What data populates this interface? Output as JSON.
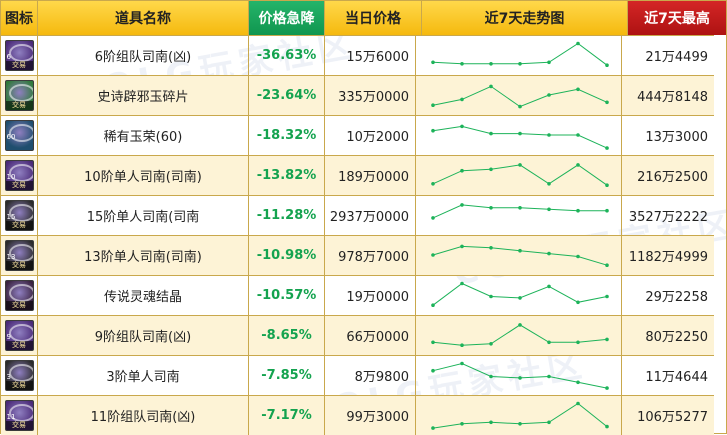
{
  "headers": {
    "icon": "图标",
    "name": "道具名称",
    "drop": "价格急降",
    "price": "当日价格",
    "trend": "近7天走势图",
    "max": "近7天最高"
  },
  "watermark": "COLG玩家社区",
  "colors": {
    "header_bg": "#f5b90e",
    "drop_header_bg": "#10964f",
    "max_header_bg": "#ae1212",
    "drop_text": "#14a34f",
    "trend_line": "#1db35a",
    "row_alt_bg": "#fdf3d6",
    "border": "#c9a84c"
  },
  "rows": [
    {
      "name": "6阶组队司南(凶)",
      "drop": "-36.63%",
      "price": "15万6000",
      "max": "21万4499",
      "icon": {
        "name": "compass-icon",
        "bg": "#4a2a78",
        "level": "6",
        "tag": "交易"
      },
      "trend": [
        0.3,
        0.25,
        0.25,
        0.25,
        0.3,
        0.95,
        0.2
      ]
    },
    {
      "name": "史诗辟邪玉碎片",
      "drop": "-23.64%",
      "price": "335万0000",
      "max": "444万8148",
      "icon": {
        "name": "jade-shard-icon",
        "bg": "#2f7a3a",
        "level": "",
        "tag": "交易"
      },
      "trend": [
        0.2,
        0.4,
        0.85,
        0.15,
        0.55,
        0.75,
        0.3
      ]
    },
    {
      "name": "稀有玉荣(60)",
      "drop": "-18.32%",
      "price": "10万2000",
      "max": "13万3000",
      "icon": {
        "name": "jade-orb-icon",
        "bg": "#1f4e6e",
        "level": "60",
        "tag": ""
      },
      "trend": [
        0.7,
        0.85,
        0.6,
        0.6,
        0.55,
        0.55,
        0.1
      ]
    },
    {
      "name": "10阶单人司南(司南)",
      "drop": "-13.82%",
      "price": "189万0000",
      "max": "216万2500",
      "icon": {
        "name": "compass-icon",
        "bg": "#4a2a78",
        "level": "10",
        "tag": "交易"
      },
      "trend": [
        0.25,
        0.7,
        0.75,
        0.9,
        0.25,
        0.9,
        0.2
      ]
    },
    {
      "name": "15阶单人司南(司南",
      "drop": "-11.28%",
      "price": "2937万0000",
      "max": "3527万2222",
      "icon": {
        "name": "compass-icon",
        "bg": "#2b2b2b",
        "level": "15",
        "tag": "交易"
      },
      "trend": [
        0.45,
        0.9,
        0.8,
        0.8,
        0.75,
        0.7,
        0.7
      ]
    },
    {
      "name": "13阶单人司南(司南)",
      "drop": "-10.98%",
      "price": "978万7000",
      "max": "1182万4999",
      "icon": {
        "name": "compass-icon",
        "bg": "#2b2b2b",
        "level": "13",
        "tag": "交易"
      },
      "trend": [
        0.55,
        0.85,
        0.8,
        0.7,
        0.6,
        0.5,
        0.2
      ]
    },
    {
      "name": "传说灵魂结晶",
      "drop": "-10.57%",
      "price": "19万0000",
      "max": "29万2258",
      "icon": {
        "name": "soul-crystal-icon",
        "bg": "#3a2340",
        "level": "",
        "tag": "交易"
      },
      "trend": [
        0.2,
        0.95,
        0.5,
        0.45,
        0.85,
        0.3,
        0.5
      ]
    },
    {
      "name": "9阶组队司南(凶)",
      "drop": "-8.65%",
      "price": "66万0000",
      "max": "80万2250",
      "icon": {
        "name": "compass-icon",
        "bg": "#4a2a78",
        "level": "9",
        "tag": "交易"
      },
      "trend": [
        0.3,
        0.2,
        0.25,
        0.9,
        0.3,
        0.3,
        0.4
      ]
    },
    {
      "name": "3阶单人司南",
      "drop": "-7.85%",
      "price": "8万9800",
      "max": "11万4644",
      "icon": {
        "name": "compass-icon",
        "bg": "#2b2b2b",
        "level": "3",
        "tag": "交易"
      },
      "trend": [
        0.7,
        0.95,
        0.5,
        0.45,
        0.5,
        0.3,
        0.1
      ]
    },
    {
      "name": "11阶组队司南(凶)",
      "drop": "-7.17%",
      "price": "99万3000",
      "max": "106万5277",
      "icon": {
        "name": "compass-icon",
        "bg": "#4a2a78",
        "level": "11",
        "tag": "交易"
      },
      "trend": [
        0.1,
        0.25,
        0.3,
        0.25,
        0.3,
        0.95,
        0.15
      ]
    }
  ]
}
